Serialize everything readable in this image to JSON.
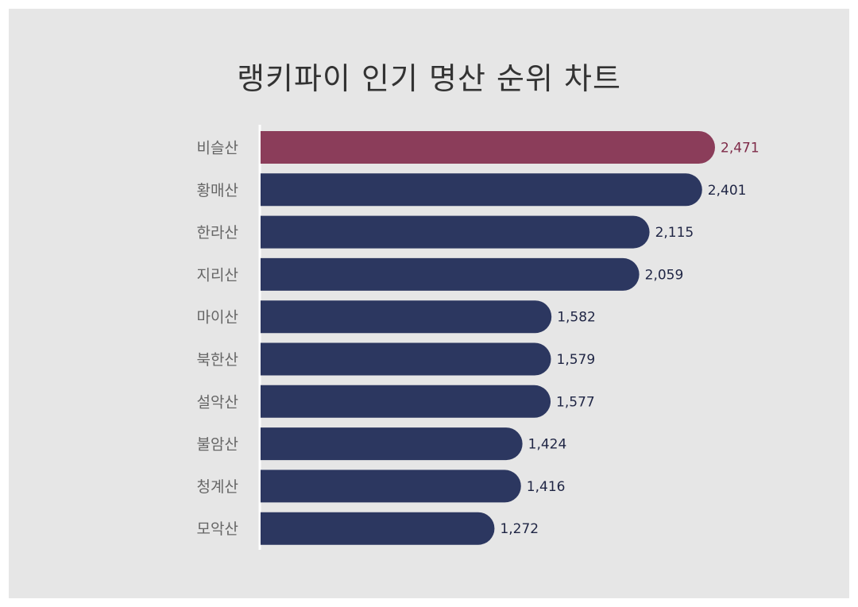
{
  "chart_data": {
    "type": "bar",
    "orientation": "horizontal",
    "title": "랭키파이 인기 명산 순위 차트",
    "categories": [
      "비슬산",
      "황매산",
      "한라산",
      "지리산",
      "마이산",
      "북한산",
      "설악산",
      "불암산",
      "청계산",
      "모악산"
    ],
    "values": [
      2471,
      2401,
      2115,
      2059,
      1582,
      1579,
      1577,
      1424,
      1416,
      1272
    ],
    "value_labels": [
      "2,471",
      "2,401",
      "2,115",
      "2,059",
      "1,582",
      "1,579",
      "1,577",
      "1,424",
      "1,416",
      "1,272"
    ],
    "highlight_index": 0,
    "xlim": [
      0,
      2471
    ],
    "grid": false,
    "legend": "none"
  },
  "colors": {
    "background": "#e6e6e6",
    "bar": "#2c3760",
    "highlight_bar": "#8b3d5a",
    "value_text": "#1f2544",
    "highlight_text": "#7e2a48",
    "category_text": "#666666",
    "axis": "#ffffff"
  }
}
